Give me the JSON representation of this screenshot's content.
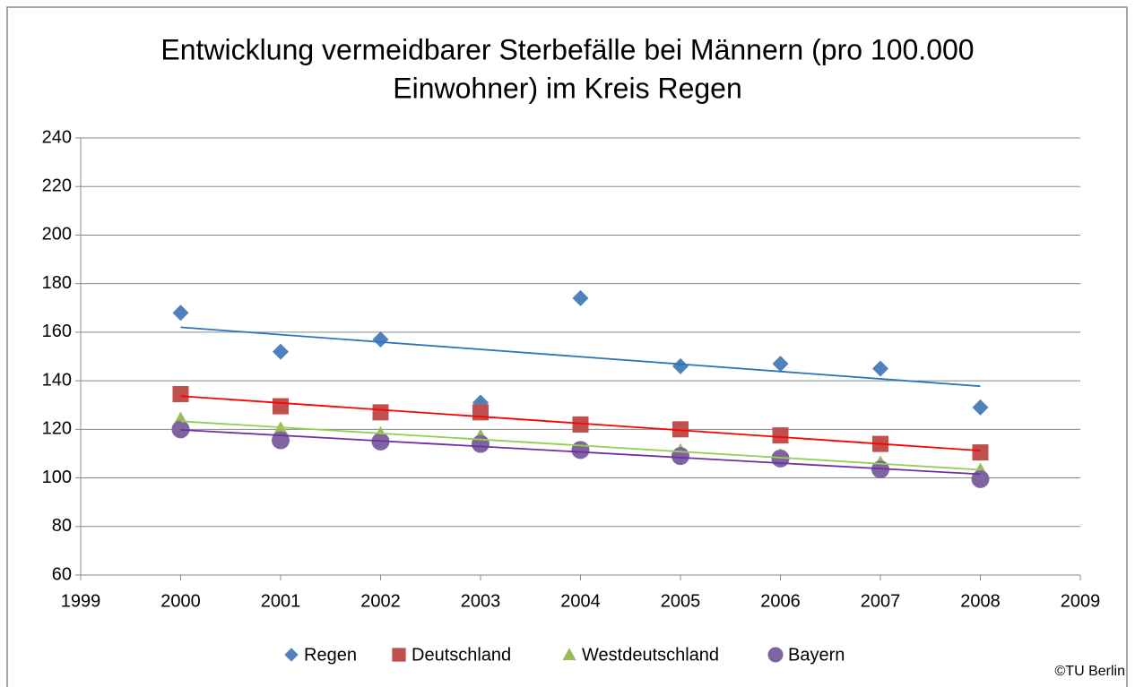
{
  "chart_data": {
    "type": "scatter",
    "title": [
      "Entwicklung vermeidbarer Sterbefälle bei Männern (pro 100.000",
      "Einwohner) im Kreis Regen"
    ],
    "x": [
      2000,
      2001,
      2002,
      2003,
      2004,
      2005,
      2006,
      2007,
      2008
    ],
    "series": [
      {
        "name": "Regen",
        "color": "#4f81bd",
        "marker": "diamond",
        "trend_color": "#2e75b6",
        "values": [
          168,
          152,
          157,
          131,
          174,
          146,
          147,
          145,
          129
        ]
      },
      {
        "name": "Deutschland",
        "color": "#c0504d",
        "marker": "square",
        "trend_color": "#ff0000",
        "values": [
          134.5,
          129.5,
          127,
          127,
          122,
          120,
          117.5,
          114,
          110.5
        ]
      },
      {
        "name": "Westdeutschland",
        "color": "#9bbb59",
        "marker": "triangle",
        "trend_color": "#92d050",
        "values": [
          124,
          120,
          118,
          117,
          112,
          111,
          109,
          106,
          103
        ]
      },
      {
        "name": "Bayern",
        "color": "#8064a2",
        "marker": "circle",
        "trend_color": "#7030a0",
        "values": [
          120,
          115.5,
          115,
          114,
          111.5,
          109,
          108,
          103.5,
          99.5
        ]
      }
    ],
    "trendline": true,
    "xlim": [
      1999,
      2009
    ],
    "xticks": [
      1999,
      2000,
      2001,
      2002,
      2003,
      2004,
      2005,
      2006,
      2007,
      2008,
      2009
    ],
    "ylim": [
      60,
      240
    ],
    "yticks": [
      60,
      80,
      100,
      120,
      140,
      160,
      180,
      200,
      220,
      240
    ],
    "grid": true,
    "legend": "bottom",
    "credit": "©TU Berlin"
  }
}
